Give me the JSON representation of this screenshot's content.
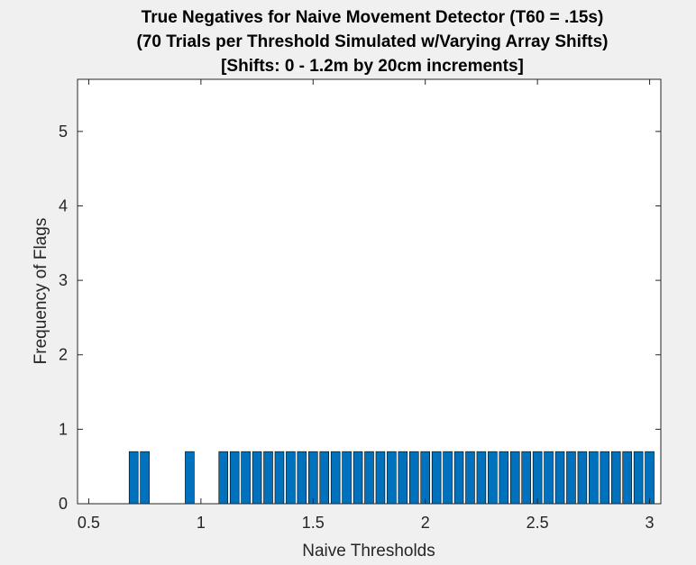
{
  "chart_data": {
    "type": "bar",
    "title": [
      "True Negatives for Naive Movement Detector (T60 = .15s)",
      "(70 Trials per Threshold Simulated w/Varying Array Shifts)",
      "[Shifts: 0 - 1.2m by 20cm increments]"
    ],
    "xlabel": "Naive Thresholds",
    "ylabel": "Frequency of Flags",
    "xlim": [
      0.45,
      3.05
    ],
    "ylim": [
      0,
      5.7
    ],
    "xticks": [
      0.5,
      1,
      1.5,
      2,
      2.5,
      3
    ],
    "xtick_labels": [
      "0.5",
      "1",
      "1.5",
      "2",
      "2.5",
      "3"
    ],
    "yticks": [
      0,
      1,
      2,
      3,
      4,
      5
    ],
    "ytick_labels": [
      "0",
      "1",
      "2",
      "3",
      "4",
      "5"
    ],
    "bar_width": 0.04,
    "bar_color": "#0072bd",
    "bar_edge_color": "#000000",
    "grid": false,
    "x": [
      0.7,
      0.75,
      0.95,
      1.1,
      1.15,
      1.2,
      1.25,
      1.3,
      1.35,
      1.4,
      1.45,
      1.5,
      1.55,
      1.6,
      1.65,
      1.7,
      1.75,
      1.8,
      1.85,
      1.9,
      1.95,
      2.0,
      2.05,
      2.1,
      2.15,
      2.2,
      2.25,
      2.3,
      2.35,
      2.4,
      2.45,
      2.5,
      2.55,
      2.6,
      2.65,
      2.7,
      2.75,
      2.8,
      2.85,
      2.9,
      2.95,
      3.0
    ],
    "values": [
      0.7,
      0.7,
      0.7,
      0.7,
      0.7,
      0.7,
      0.7,
      0.7,
      0.7,
      0.7,
      0.7,
      0.7,
      0.7,
      0.7,
      0.7,
      0.7,
      0.7,
      0.7,
      0.7,
      0.7,
      0.7,
      0.7,
      0.7,
      0.7,
      0.7,
      0.7,
      0.7,
      0.7,
      0.7,
      0.7,
      0.7,
      0.7,
      0.7,
      0.7,
      0.7,
      0.7,
      0.7,
      0.7,
      0.7,
      0.7,
      0.7,
      0.7
    ]
  }
}
